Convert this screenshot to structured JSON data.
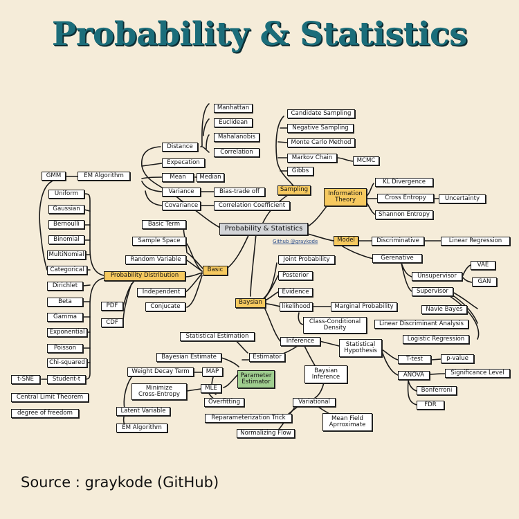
{
  "title": "Probability & Statistics",
  "source": "Source : graykode (GitHub)",
  "center_tag": "Github @graykode",
  "nodes": {
    "center": "Probability & Statistics",
    "basic": "Basic",
    "sampling": "Sampling",
    "info_theory": "Information\nTheory",
    "model": "Model",
    "baysian": "Baysian",
    "prob_dist": "Probability Distribution",
    "param_est": "Parameter\nEstimator",
    "manhattan": "Manhattan",
    "euclidean": "Euclidean",
    "mahalanobis": "Mahalanobis",
    "correlation": "Correlation",
    "distance": "Distance",
    "expecation": "Expecation",
    "mean": "Mean",
    "median": "Median",
    "variance": "Variance",
    "bias_tradeoff": "Bias-trade off",
    "covariance": "Covariance",
    "corr_coef": "Correlation Coefficient",
    "basic_term": "Basic Term",
    "sample_space": "Sample Space",
    "random_variable": "Random Variable",
    "independent": "Independent",
    "conjucate": "Conjucate",
    "pdf": "PDF",
    "cdf": "CDF",
    "candidate_sampling": "Candidate Sampling",
    "negative_sampling": "Negative Sampling",
    "monte_carlo": "Monte Carlo Method",
    "markov_chain": "Markov Chain",
    "mcmc": "MCMC",
    "gibbs": "Gibbs",
    "kl_divergence": "KL Divergence",
    "cross_entropy": "Cross Entropy",
    "uncertainty": "Uncertainty",
    "shannon_entropy": "Shannon Entropy",
    "discriminative": "Discriminative",
    "linear_regression": "Linear Regression",
    "generative": "Gerenative",
    "unsupervisor": "Unsupervisor",
    "vae": "VAE",
    "gan": "GAN",
    "supervisor": "Supervisor",
    "naive_bayes": "Navie Bayes",
    "lda": "Linear Discriminant Analysis",
    "logistic_regression": "Logistic Regression",
    "gmm": "GMM",
    "em_algorithm_top": "EM Algorithm",
    "uniform": "Uniform",
    "gaussian": "Gaussian",
    "bernoulli": "Bernoulli",
    "binomial": "Binomial",
    "multinomial": "MultiNomial",
    "categorical": "Categorical",
    "dirichlet": "Dirichlet",
    "beta": "Beta",
    "gamma": "Gamma",
    "exponential": "Exponential",
    "poisson": "Poisson",
    "chi_squared": "Chi-squared",
    "tsne": "t-SNE",
    "student_t": "Student-t",
    "clt": "Central Limit Theorem",
    "dof": "degree of freedom",
    "joint_prob": "Joint Probability",
    "posterior": "Posterior",
    "evidence": "Evidence",
    "likelihood": "likelihood",
    "marginal_prob": "Marginal Probability",
    "class_cond": "Class-Conditional\nDensity",
    "inference": "Inference",
    "stat_hypothesis": "Statistical\nHypothesis",
    "ttest": "T-test",
    "pvalue": "p-value",
    "anova": "ANOVA",
    "significance": "Significance Level",
    "bonferroni": "Bonferroni",
    "fdr": "FDR",
    "stat_estimation": "Statistical Estimation",
    "bayesian_estimate": "Bayesian Estimate",
    "estimator": "Estimator",
    "weight_decay": "Weight Decay Term",
    "map": "MAP",
    "min_cross_entropy": "Minimize\nCross-Entropy",
    "mle": "MLE",
    "overfitting": "Overfitting",
    "latent_variable": "Latent Variable",
    "em_algorithm_bottom": "EM Algorithm",
    "baysian_inference": "Baysian\nInference",
    "variational": "Variational",
    "reparam_trick": "Reparameterization Trick",
    "normalizing_flow": "Normalizing Flow",
    "mean_field": "Mean Field\nAprroximate"
  }
}
